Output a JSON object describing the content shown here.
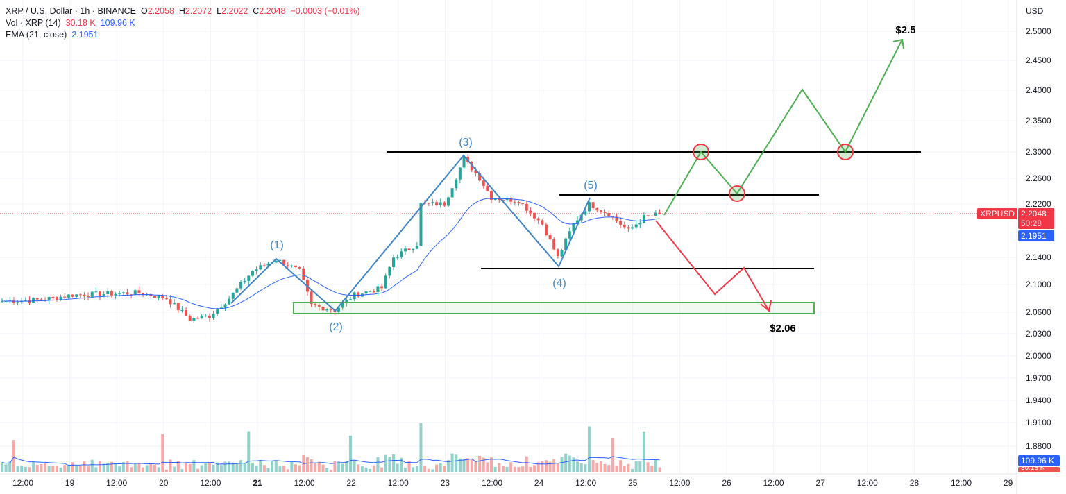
{
  "legend": {
    "symbol": "XRP / U.S. Dollar · 1h · BINANCE",
    "o_label": "O",
    "o": "2.2058",
    "h_label": "H",
    "h": "2.2072",
    "l_label": "L",
    "l": "2.2022",
    "c_label": "C",
    "c": "2.2048",
    "change": "−0.0003 (−0.01%)",
    "vol_label": "Vol · XRP (14)",
    "vol": "30.18 K",
    "vol_ma": "109.96 K",
    "ema_label": "EMA (21, close)",
    "ema": "2.1951"
  },
  "axis": {
    "currency": "USD",
    "symbol_tag": "XRPUSD",
    "price_tag": "2.2048",
    "countdown": "50:28",
    "ema_tag": "2.1951",
    "vol_tag": "109.96 K",
    "vol_tag2": "30.18 K"
  },
  "colors": {
    "up": "#26a69a",
    "down": "#ef5350",
    "ema": "#2962ff",
    "bull": "#4caf50",
    "bear": "#f23645"
  },
  "chart_data": {
    "type": "candlestick",
    "title": "XRP / U.S. Dollar · 1h · BINANCE",
    "y_ticks": [
      "2.5000",
      "2.4500",
      "2.4000",
      "2.3500",
      "2.3000",
      "2.2600",
      "2.2200",
      "2.1400",
      "2.1000",
      "2.0600",
      "2.0300",
      "2.0000",
      "1.9700",
      "1.9400",
      "1.9100",
      "1.8800"
    ],
    "x_ticks": [
      "12:00",
      "19",
      "12:00",
      "20",
      "12:00",
      "21",
      "12:00",
      "22",
      "12:00",
      "23",
      "12:00",
      "24",
      "12:00",
      "25",
      "12:00",
      "26",
      "12:00",
      "27",
      "12:00",
      "28",
      "12:00",
      "29"
    ],
    "close_keypoints": [
      [
        0,
        2.076
      ],
      [
        10,
        2.078
      ],
      [
        18,
        2.085
      ],
      [
        35,
        2.088
      ],
      [
        42,
        2.08
      ],
      [
        48,
        2.05
      ],
      [
        53,
        2.055
      ],
      [
        58,
        2.08
      ],
      [
        64,
        2.12
      ],
      [
        70,
        2.137
      ],
      [
        76,
        2.12
      ],
      [
        79,
        2.07
      ],
      [
        85,
        2.063
      ],
      [
        90,
        2.085
      ],
      [
        97,
        2.095
      ],
      [
        100,
        2.14
      ],
      [
        106,
        2.16
      ],
      [
        107,
        2.22
      ],
      [
        113,
        2.22
      ],
      [
        118,
        2.29
      ],
      [
        122,
        2.26
      ],
      [
        125,
        2.23
      ],
      [
        132,
        2.225
      ],
      [
        138,
        2.19
      ],
      [
        142,
        2.14
      ],
      [
        146,
        2.19
      ],
      [
        150,
        2.22
      ],
      [
        155,
        2.205
      ],
      [
        160,
        2.18
      ],
      [
        164,
        2.2
      ],
      [
        168,
        2.2048
      ]
    ],
    "annotations": {
      "wave_labels": [
        "(1)",
        "(2)",
        "(3)",
        "(4)",
        "(5)"
      ],
      "target_up": "$2.5",
      "target_down": "$2.06",
      "resistance": 2.3,
      "levels": [
        2.23,
        2.13
      ],
      "support_zone": [
        2.06,
        2.075
      ]
    }
  }
}
